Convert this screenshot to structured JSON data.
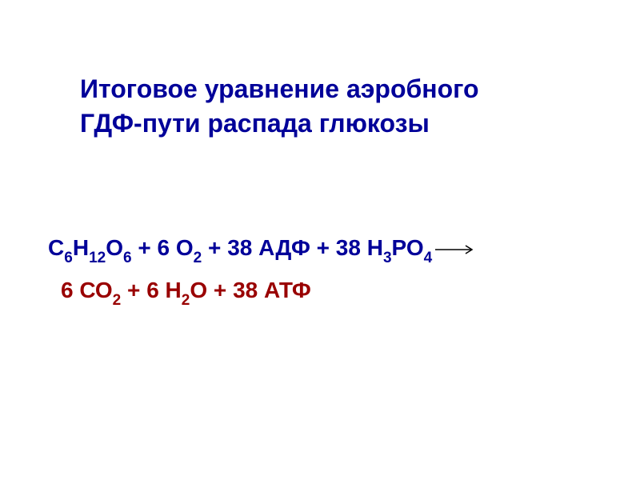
{
  "title": {
    "line1": "Итоговое уравнение аэробного",
    "line2": "ГДФ-пути распада глюкозы",
    "color": "#000099",
    "fontsize": 32
  },
  "equation": {
    "reactants": {
      "color": "#000099",
      "fontsize": 28,
      "parts": {
        "c": "С",
        "c_sub": "6",
        "h1": "Н",
        "h1_sub": "12",
        "o1": "О",
        "o1_sub": "6",
        "plus1": "  +  ",
        "coeff_o2": "6 ",
        "o2": "О",
        "o2_sub": "2",
        "plus2": "  +  ",
        "adp": "38 АДФ",
        "plus3": "  +  ",
        "coeff_h3po4": "38 ",
        "h3": "Н",
        "h3_sub": "3",
        "p": "РО",
        "p_sub": "4"
      }
    },
    "products": {
      "color": "#990000",
      "fontsize": 28,
      "indent": 16,
      "parts": {
        "coeff_co2": "6 ",
        "co2_c": "СО",
        "co2_sub": "2",
        "plus1": "    +   ",
        "coeff_h2o": "6 ",
        "h2o_h": "Н",
        "h2o_h_sub": "2",
        "h2o_o": "О",
        "plus2": "   +   ",
        "atp": "38 АТФ"
      }
    },
    "arrow": {
      "width": 50,
      "height": 14,
      "color": "#000000"
    }
  }
}
